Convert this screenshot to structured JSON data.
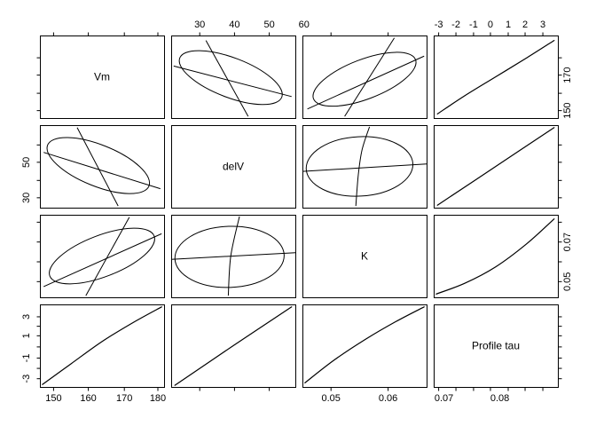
{
  "figure": {
    "kind": "profile pairs plot (scatterplot matrix of parameter profiles)",
    "background": "#ffffff",
    "line_color": "#000000"
  },
  "chart_data": {
    "type": "scatterplot-matrix",
    "title": "",
    "grid": "off",
    "legend": "none",
    "diagonal_labels": [
      "Vm",
      "delV",
      "K",
      "Profile tau"
    ],
    "col_vars": [
      "Vm",
      "delV",
      "K",
      "tau"
    ],
    "row_vars": [
      "Vm",
      "delV",
      "K",
      "tau"
    ],
    "variables": {
      "Vm": {
        "ticks": [
          "150",
          "160",
          "170",
          "180"
        ],
        "h_fracs": [
          0.11,
          0.39,
          0.68,
          0.95
        ],
        "v_fracs": [
          0.09,
          0.3,
          0.52,
          0.73
        ]
      },
      "delV": {
        "ticks": [
          "30",
          "40",
          "50",
          "60"
        ],
        "h_fracs": [
          0.23,
          0.51,
          0.79,
          1.07
        ],
        "v_fracs": [
          0.12,
          0.33,
          0.55,
          0.76
        ]
      },
      "K": {
        "ticks": [
          "0.05",
          "0.06",
          "0.07",
          "0.08"
        ],
        "h_fracs": [
          0.23,
          0.69,
          1.14,
          1.59
        ],
        "v_fracs": [
          0.19,
          0.43,
          0.67,
          0.91
        ]
      },
      "tau": {
        "ticks": [
          "-3",
          "-2",
          "-1",
          "0",
          "1",
          "2",
          "3"
        ],
        "h_fracs": [
          0.04,
          0.179,
          0.321,
          0.457,
          0.6,
          0.736,
          0.879
        ],
        "v_fracs": [
          0.1,
          0.225,
          0.35,
          0.485,
          0.62,
          0.735,
          0.85
        ]
      }
    },
    "axes": {
      "top": [
        {
          "col": 2,
          "var": "delV",
          "label_indices": [
            0,
            1,
            2,
            3
          ]
        },
        {
          "col": 4,
          "var": "tau",
          "label_indices": [
            0,
            1,
            2,
            3,
            4,
            5,
            6
          ]
        }
      ],
      "bottom": [
        {
          "col": 1,
          "var": "Vm",
          "label_indices": [
            0,
            1,
            2,
            3
          ]
        },
        {
          "col": 3,
          "var": "K",
          "label_indices": [
            0,
            1,
            2,
            3
          ]
        }
      ],
      "left": [
        {
          "row": 2,
          "var": "delV",
          "label_indices": [
            0,
            2
          ]
        },
        {
          "row": 4,
          "var": "tau",
          "label_indices": [
            0,
            2,
            4,
            6
          ]
        }
      ],
      "right": [
        {
          "row": 1,
          "var": "Vm",
          "label_indices": [
            0,
            2
          ]
        },
        {
          "row": 3,
          "var": "K",
          "label_indices": [
            0,
            2
          ]
        }
      ]
    },
    "panels": [
      {
        "row": 1,
        "col": 1,
        "kind": "label",
        "text": "Vm"
      },
      {
        "row": 1,
        "col": 2,
        "kind": "ellipse",
        "x_var": "delV",
        "y_var": "Vm",
        "correlation": "negative",
        "ellipse": {
          "cx": 0.48,
          "cy": 0.49,
          "rx": 0.44,
          "ry": 0.24,
          "angle_deg": -21
        },
        "traces": [
          [
            [
              0.28,
              0.94
            ],
            [
              0.62,
              0.02
            ]
          ],
          [
            [
              0.02,
              0.63
            ],
            [
              0.97,
              0.26
            ]
          ]
        ]
      },
      {
        "row": 1,
        "col": 3,
        "kind": "ellipse",
        "x_var": "K",
        "y_var": "Vm",
        "correlation": "positive",
        "ellipse": {
          "cx": 0.5,
          "cy": 0.47,
          "rx": 0.44,
          "ry": 0.24,
          "angle_deg": 21
        },
        "traces": [
          [
            [
              0.34,
              0.02
            ],
            [
              0.74,
              0.97
            ]
          ],
          [
            [
              0.04,
              0.11
            ],
            [
              0.98,
              0.75
            ]
          ]
        ]
      },
      {
        "row": 1,
        "col": 4,
        "kind": "curve",
        "x_var": "tau",
        "y_var": "Vm",
        "curve": [
          [
            0.03,
            0.05
          ],
          [
            0.25,
            0.27
          ],
          [
            0.5,
            0.5
          ],
          [
            0.75,
            0.73
          ],
          [
            0.97,
            0.94
          ]
        ]
      },
      {
        "row": 2,
        "col": 1,
        "kind": "ellipse",
        "x_var": "Vm",
        "y_var": "delV",
        "correlation": "negative",
        "ellipse": {
          "cx": 0.47,
          "cy": 0.51,
          "rx": 0.44,
          "ry": 0.25,
          "angle_deg": -22
        },
        "traces": [
          [
            [
              0.3,
              0.97
            ],
            [
              0.63,
              0.02
            ]
          ],
          [
            [
              0.03,
              0.67
            ],
            [
              0.97,
              0.23
            ]
          ]
        ]
      },
      {
        "row": 2,
        "col": 2,
        "kind": "label",
        "text": "delV"
      },
      {
        "row": 2,
        "col": 3,
        "kind": "ellipse",
        "x_var": "K",
        "y_var": "delV",
        "correlation": "near-zero",
        "ellipse": {
          "cx": 0.46,
          "cy": 0.5,
          "rx": 0.43,
          "ry": 0.36,
          "angle_deg": 3
        },
        "traces": [
          [
            [
              0.0,
              0.44
            ],
            [
              1.0,
              0.53
            ]
          ],
          [
            [
              0.43,
              0.02
            ],
            [
              0.45,
              0.4
            ],
            [
              0.48,
              0.7
            ],
            [
              0.54,
              0.98
            ]
          ]
        ]
      },
      {
        "row": 2,
        "col": 4,
        "kind": "curve",
        "x_var": "tau",
        "y_var": "delV",
        "curve": [
          [
            0.03,
            0.03
          ],
          [
            0.5,
            0.5
          ],
          [
            0.97,
            0.97
          ]
        ]
      },
      {
        "row": 3,
        "col": 1,
        "kind": "ellipse",
        "x_var": "Vm",
        "y_var": "K",
        "correlation": "positive",
        "ellipse": {
          "cx": 0.5,
          "cy": 0.5,
          "rx": 0.45,
          "ry": 0.25,
          "angle_deg": 21
        },
        "traces": [
          [
            [
              0.37,
              0.02
            ],
            [
              0.72,
              0.97
            ]
          ],
          [
            [
              0.03,
              0.13
            ],
            [
              0.98,
              0.77
            ]
          ]
        ]
      },
      {
        "row": 3,
        "col": 2,
        "kind": "ellipse",
        "x_var": "delV",
        "y_var": "K",
        "correlation": "near-zero",
        "ellipse": {
          "cx": 0.47,
          "cy": 0.49,
          "rx": 0.44,
          "ry": 0.37,
          "angle_deg": 2
        },
        "traces": [
          [
            [
              0.0,
              0.46
            ],
            [
              1.0,
              0.54
            ]
          ],
          [
            [
              0.46,
              0.02
            ],
            [
              0.48,
              0.5
            ],
            [
              0.55,
              0.98
            ]
          ]
        ]
      },
      {
        "row": 3,
        "col": 3,
        "kind": "label",
        "text": "K"
      },
      {
        "row": 3,
        "col": 4,
        "kind": "curve",
        "x_var": "tau",
        "y_var": "K",
        "curve": [
          [
            0.02,
            0.04
          ],
          [
            0.25,
            0.17
          ],
          [
            0.5,
            0.37
          ],
          [
            0.75,
            0.65
          ],
          [
            0.97,
            0.95
          ]
        ]
      },
      {
        "row": 4,
        "col": 1,
        "kind": "curve",
        "x_var": "Vm",
        "y_var": "tau",
        "curve": [
          [
            0.02,
            0.03
          ],
          [
            0.25,
            0.28
          ],
          [
            0.5,
            0.55
          ],
          [
            0.75,
            0.78
          ],
          [
            0.98,
            0.97
          ]
        ]
      },
      {
        "row": 4,
        "col": 2,
        "kind": "curve",
        "x_var": "delV",
        "y_var": "tau",
        "curve": [
          [
            0.03,
            0.02
          ],
          [
            0.5,
            0.5
          ],
          [
            0.97,
            0.97
          ]
        ]
      },
      {
        "row": 4,
        "col": 3,
        "kind": "curve",
        "x_var": "K",
        "y_var": "tau",
        "curve": [
          [
            0.02,
            0.05
          ],
          [
            0.25,
            0.32
          ],
          [
            0.5,
            0.57
          ],
          [
            0.75,
            0.79
          ],
          [
            0.98,
            0.97
          ]
        ]
      },
      {
        "row": 4,
        "col": 4,
        "kind": "label",
        "text": "Profile tau"
      }
    ]
  }
}
